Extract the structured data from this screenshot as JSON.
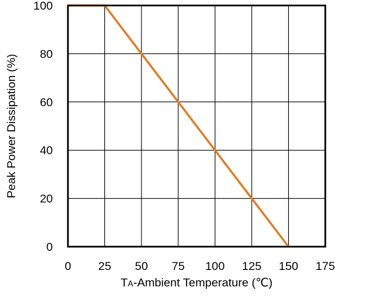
{
  "chart_data": {
    "type": "line",
    "title": "",
    "xlabel_main": "T",
    "xlabel_sub": "A",
    "xlabel_rest": "-Ambient Temperature (℃)",
    "ylabel": "Peak Power Dissipation (%)",
    "xlim": [
      0,
      175
    ],
    "ylim": [
      0,
      100
    ],
    "x_ticks": [
      "0",
      "25",
      "50",
      "75",
      "100",
      "125",
      "150",
      "175"
    ],
    "y_ticks": [
      "0",
      "20",
      "40",
      "60",
      "80",
      "100"
    ],
    "grid": true,
    "series": [
      {
        "color": "#e07a1f",
        "x": [
          0,
          25,
          150
        ],
        "y": [
          100,
          100,
          0
        ]
      }
    ]
  }
}
